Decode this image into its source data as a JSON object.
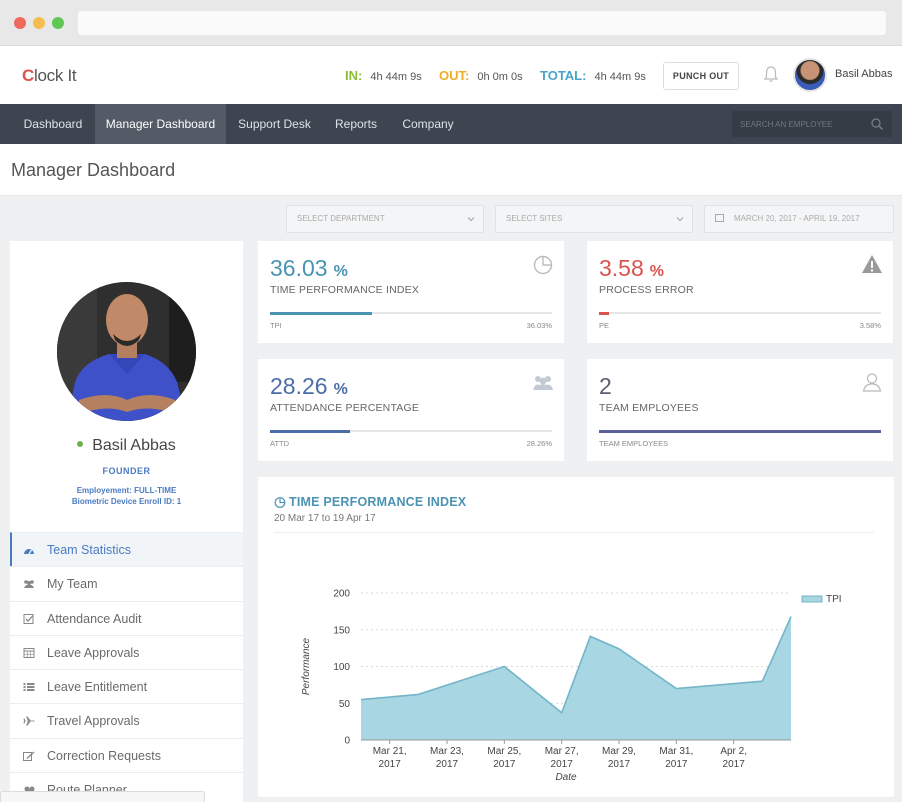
{
  "app": {
    "logo_text": "lock It",
    "logo_c": "C"
  },
  "header": {
    "in_label": "IN:",
    "in_value": "4h 44m 9s",
    "out_label": "OUT:",
    "out_value": "0h 0m 0s",
    "total_label": "TOTAL:",
    "total_value": "4h 44m 9s",
    "punch_out_label": "PUNCH OUT",
    "user_name": "Basil Abbas",
    "icons": [
      "bell-icon",
      "avatar"
    ]
  },
  "nav": {
    "items": [
      {
        "label": "Dashboard",
        "active": false
      },
      {
        "label": "Manager Dashboard",
        "active": true
      },
      {
        "label": "Support Desk",
        "active": false
      },
      {
        "label": "Reports",
        "active": false
      },
      {
        "label": "Company",
        "active": false
      }
    ],
    "search_placeholder": "SEARCH AN EMPLOYEE"
  },
  "page": {
    "title": "Manager Dashboard"
  },
  "filters": {
    "department": "SELECT DEPARTMENT",
    "sites": "SELECT SITES",
    "date_range": "MARCH 20, 2017 - APRIL 19, 2017"
  },
  "profile": {
    "name": "Basil Abbas",
    "role": "FOUNDER",
    "employment": "Employement: FULL-TIME",
    "biometric": "Biometric Device Enroll ID: 1",
    "status": "online"
  },
  "menu": {
    "items": [
      {
        "label": "Team Statistics",
        "icon": "dashboard-gauge-icon",
        "active": true
      },
      {
        "label": "My Team",
        "icon": "users-icon",
        "active": false
      },
      {
        "label": "Attendance Audit",
        "icon": "check-square-icon",
        "active": false
      },
      {
        "label": "Leave Approvals",
        "icon": "calendar-icon",
        "active": false
      },
      {
        "label": "Leave Entitlement",
        "icon": "list-icon",
        "active": false
      },
      {
        "label": "Travel Approvals",
        "icon": "plane-icon",
        "active": false
      },
      {
        "label": "Correction Requests",
        "icon": "edit-icon",
        "active": false
      },
      {
        "label": "Route Planner",
        "icon": "route-icon",
        "active": false
      }
    ]
  },
  "kpis": {
    "tpi": {
      "value": "36.03",
      "unit": "%",
      "label": "TIME PERFORMANCE INDEX",
      "short": "TPI",
      "percent_text": "36.03%",
      "progress": 0.3603,
      "color": "#4b93b2",
      "icon": "pie-chart-icon"
    },
    "pe": {
      "value": "3.58",
      "unit": "%",
      "label": "PROCESS ERROR",
      "short": "PE",
      "percent_text": "3.58%",
      "progress": 0.0358,
      "color": "#d9534f",
      "icon": "warning-icon"
    },
    "attd": {
      "value": "28.26",
      "unit": "%",
      "label": "ATTENDANCE PERCENTAGE",
      "short": "ATTD",
      "percent_text": "28.26%",
      "progress": 0.2826,
      "color": "#4b6ea8",
      "icon": "group-icon"
    },
    "team": {
      "value": "2",
      "unit": "",
      "label": "TEAM EMPLOYEES",
      "short": "TEAM EMPLOYEES",
      "progress": 1.0,
      "color": "#5b5f9e",
      "icon": "user-outline-icon"
    }
  },
  "chart": {
    "title": "TIME PERFORMANCE INDEX",
    "subtitle": "20 Mar 17 to 19 Apr 17"
  },
  "chart_data": {
    "type": "area",
    "title": "TIME PERFORMANCE INDEX",
    "subtitle": "20 Mar 17 to 19 Apr 17",
    "xlabel": "Date",
    "ylabel": "Performance",
    "ylim": [
      0,
      200
    ],
    "yticks": [
      0,
      50,
      100,
      150,
      200
    ],
    "x_tick_labels": [
      [
        "Mar 21,",
        "2017"
      ],
      [
        "Mar 23,",
        "2017"
      ],
      [
        "Mar 25,",
        "2017"
      ],
      [
        "Mar 27,",
        "2017"
      ],
      [
        "Mar 29,",
        "2017"
      ],
      [
        "Mar 31,",
        "2017"
      ],
      [
        "Apr 2,",
        "2017"
      ]
    ],
    "x_tick_positions": [
      1,
      3,
      5,
      7,
      9,
      11,
      13
    ],
    "xlim": [
      0,
      15
    ],
    "grid": "horizontal-dashed",
    "legend": "top-right",
    "series": [
      {
        "name": "TPI",
        "color": "#a8d6e2",
        "line_color": "#74b5c8",
        "x": [
          0,
          2,
          5,
          7,
          8,
          9,
          11,
          14,
          15
        ],
        "values": [
          55,
          62,
          100,
          37,
          141,
          124,
          70,
          80,
          168
        ]
      }
    ]
  }
}
